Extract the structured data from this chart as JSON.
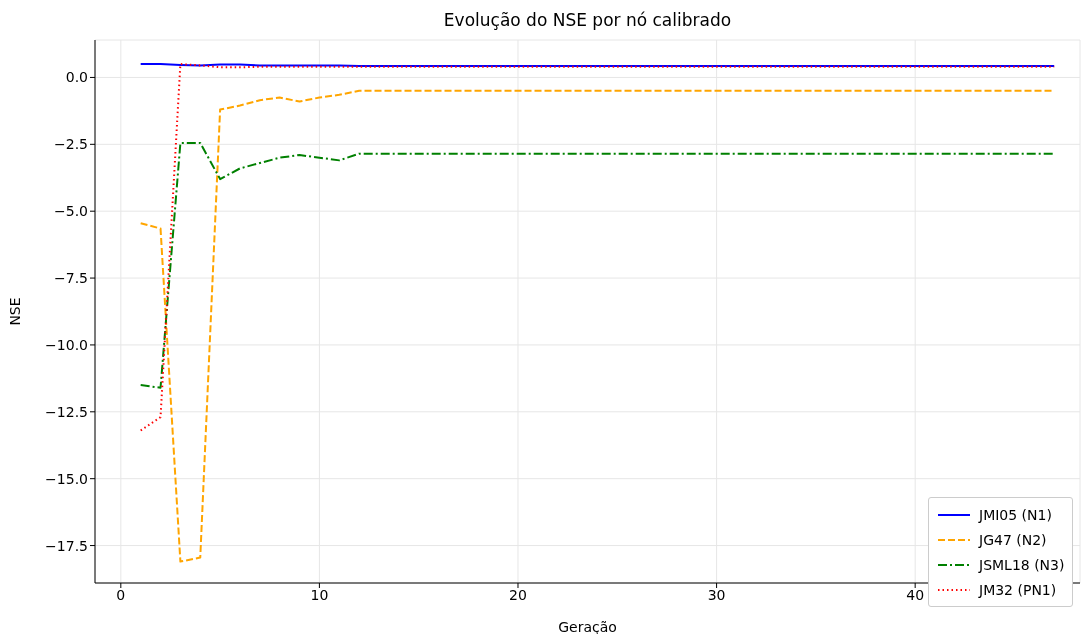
{
  "chart_data": {
    "type": "line",
    "title": "Evolução do NSE por nó calibrado",
    "xlabel": "Geração",
    "ylabel": "NSE",
    "x": [
      1,
      2,
      3,
      4,
      5,
      6,
      7,
      8,
      9,
      10,
      11,
      12,
      13,
      14,
      15,
      16,
      17,
      18,
      19,
      20,
      21,
      22,
      23,
      24,
      25,
      26,
      27,
      28,
      29,
      30,
      31,
      32,
      33,
      34,
      35,
      36,
      37,
      38,
      39,
      40,
      41,
      42,
      43,
      44,
      45,
      46,
      47
    ],
    "series": [
      {
        "name": "JMI05 (N1)",
        "color": "#0000ff",
        "line_style": "solid",
        "values": [
          0.5,
          0.5,
          0.47,
          0.45,
          0.48,
          0.48,
          0.45,
          0.45,
          0.45,
          0.45,
          0.45,
          0.43,
          0.43,
          0.43,
          0.43,
          0.43,
          0.43,
          0.43,
          0.43,
          0.43,
          0.43,
          0.43,
          0.43,
          0.43,
          0.43,
          0.43,
          0.43,
          0.43,
          0.43,
          0.43,
          0.43,
          0.43,
          0.43,
          0.43,
          0.43,
          0.43,
          0.43,
          0.43,
          0.43,
          0.43,
          0.43,
          0.43,
          0.43,
          0.43,
          0.43,
          0.43,
          0.43
        ]
      },
      {
        "name": "JG47 (N2)",
        "color": "#ffa500",
        "line_style": "dashed",
        "values": [
          -5.45,
          -5.65,
          -18.1,
          -17.95,
          -1.2,
          -1.05,
          -0.85,
          -0.75,
          -0.9,
          -0.75,
          -0.65,
          -0.5,
          -0.5,
          -0.5,
          -0.5,
          -0.5,
          -0.5,
          -0.5,
          -0.5,
          -0.5,
          -0.5,
          -0.5,
          -0.5,
          -0.5,
          -0.5,
          -0.5,
          -0.5,
          -0.5,
          -0.5,
          -0.5,
          -0.5,
          -0.5,
          -0.5,
          -0.5,
          -0.5,
          -0.5,
          -0.5,
          -0.5,
          -0.5,
          -0.5,
          -0.5,
          -0.5,
          -0.5,
          -0.5,
          -0.5,
          -0.5,
          -0.5
        ]
      },
      {
        "name": "JSML18 (N3)",
        "color": "#008000",
        "line_style": "dashdot",
        "values": [
          -11.5,
          -11.6,
          -2.45,
          -2.45,
          -3.8,
          -3.4,
          -3.2,
          -3.0,
          -2.9,
          -3.0,
          -3.1,
          -2.85,
          -2.85,
          -2.85,
          -2.85,
          -2.85,
          -2.85,
          -2.85,
          -2.85,
          -2.85,
          -2.85,
          -2.85,
          -2.85,
          -2.85,
          -2.85,
          -2.85,
          -2.85,
          -2.85,
          -2.85,
          -2.85,
          -2.85,
          -2.85,
          -2.85,
          -2.85,
          -2.85,
          -2.85,
          -2.85,
          -2.85,
          -2.85,
          -2.85,
          -2.85,
          -2.85,
          -2.85,
          -2.85,
          -2.85,
          -2.85,
          -2.85
        ]
      },
      {
        "name": "JM32 (PN1)",
        "color": "#ff0000",
        "line_style": "dotted",
        "values": [
          -13.2,
          -12.7,
          0.5,
          0.45,
          0.38,
          0.38,
          0.4,
          0.4,
          0.4,
          0.4,
          0.4,
          0.4,
          0.4,
          0.4,
          0.4,
          0.4,
          0.4,
          0.4,
          0.4,
          0.4,
          0.4,
          0.4,
          0.4,
          0.4,
          0.4,
          0.4,
          0.4,
          0.4,
          0.4,
          0.4,
          0.4,
          0.4,
          0.4,
          0.4,
          0.4,
          0.4,
          0.4,
          0.4,
          0.4,
          0.4,
          0.4,
          0.4,
          0.4,
          0.4,
          0.4,
          0.4,
          0.4
        ]
      }
    ],
    "xlim": [
      -1.3,
      48.3
    ],
    "xticks": [
      0,
      10,
      20,
      30,
      40
    ],
    "ylim": [
      -18.9,
      1.4
    ],
    "yticks": [
      {
        "value": 0,
        "label": "0.0"
      },
      {
        "value": -2.5,
        "label": "−2.5"
      },
      {
        "value": -5,
        "label": "−5.0"
      },
      {
        "value": -7.5,
        "label": "−7.5"
      },
      {
        "value": -10,
        "label": "−10.0"
      },
      {
        "value": -12.5,
        "label": "−12.5"
      },
      {
        "value": -15,
        "label": "−15.0"
      },
      {
        "value": -17.5,
        "label": "−17.5"
      }
    ],
    "grid": true,
    "legend": "bottom right"
  }
}
